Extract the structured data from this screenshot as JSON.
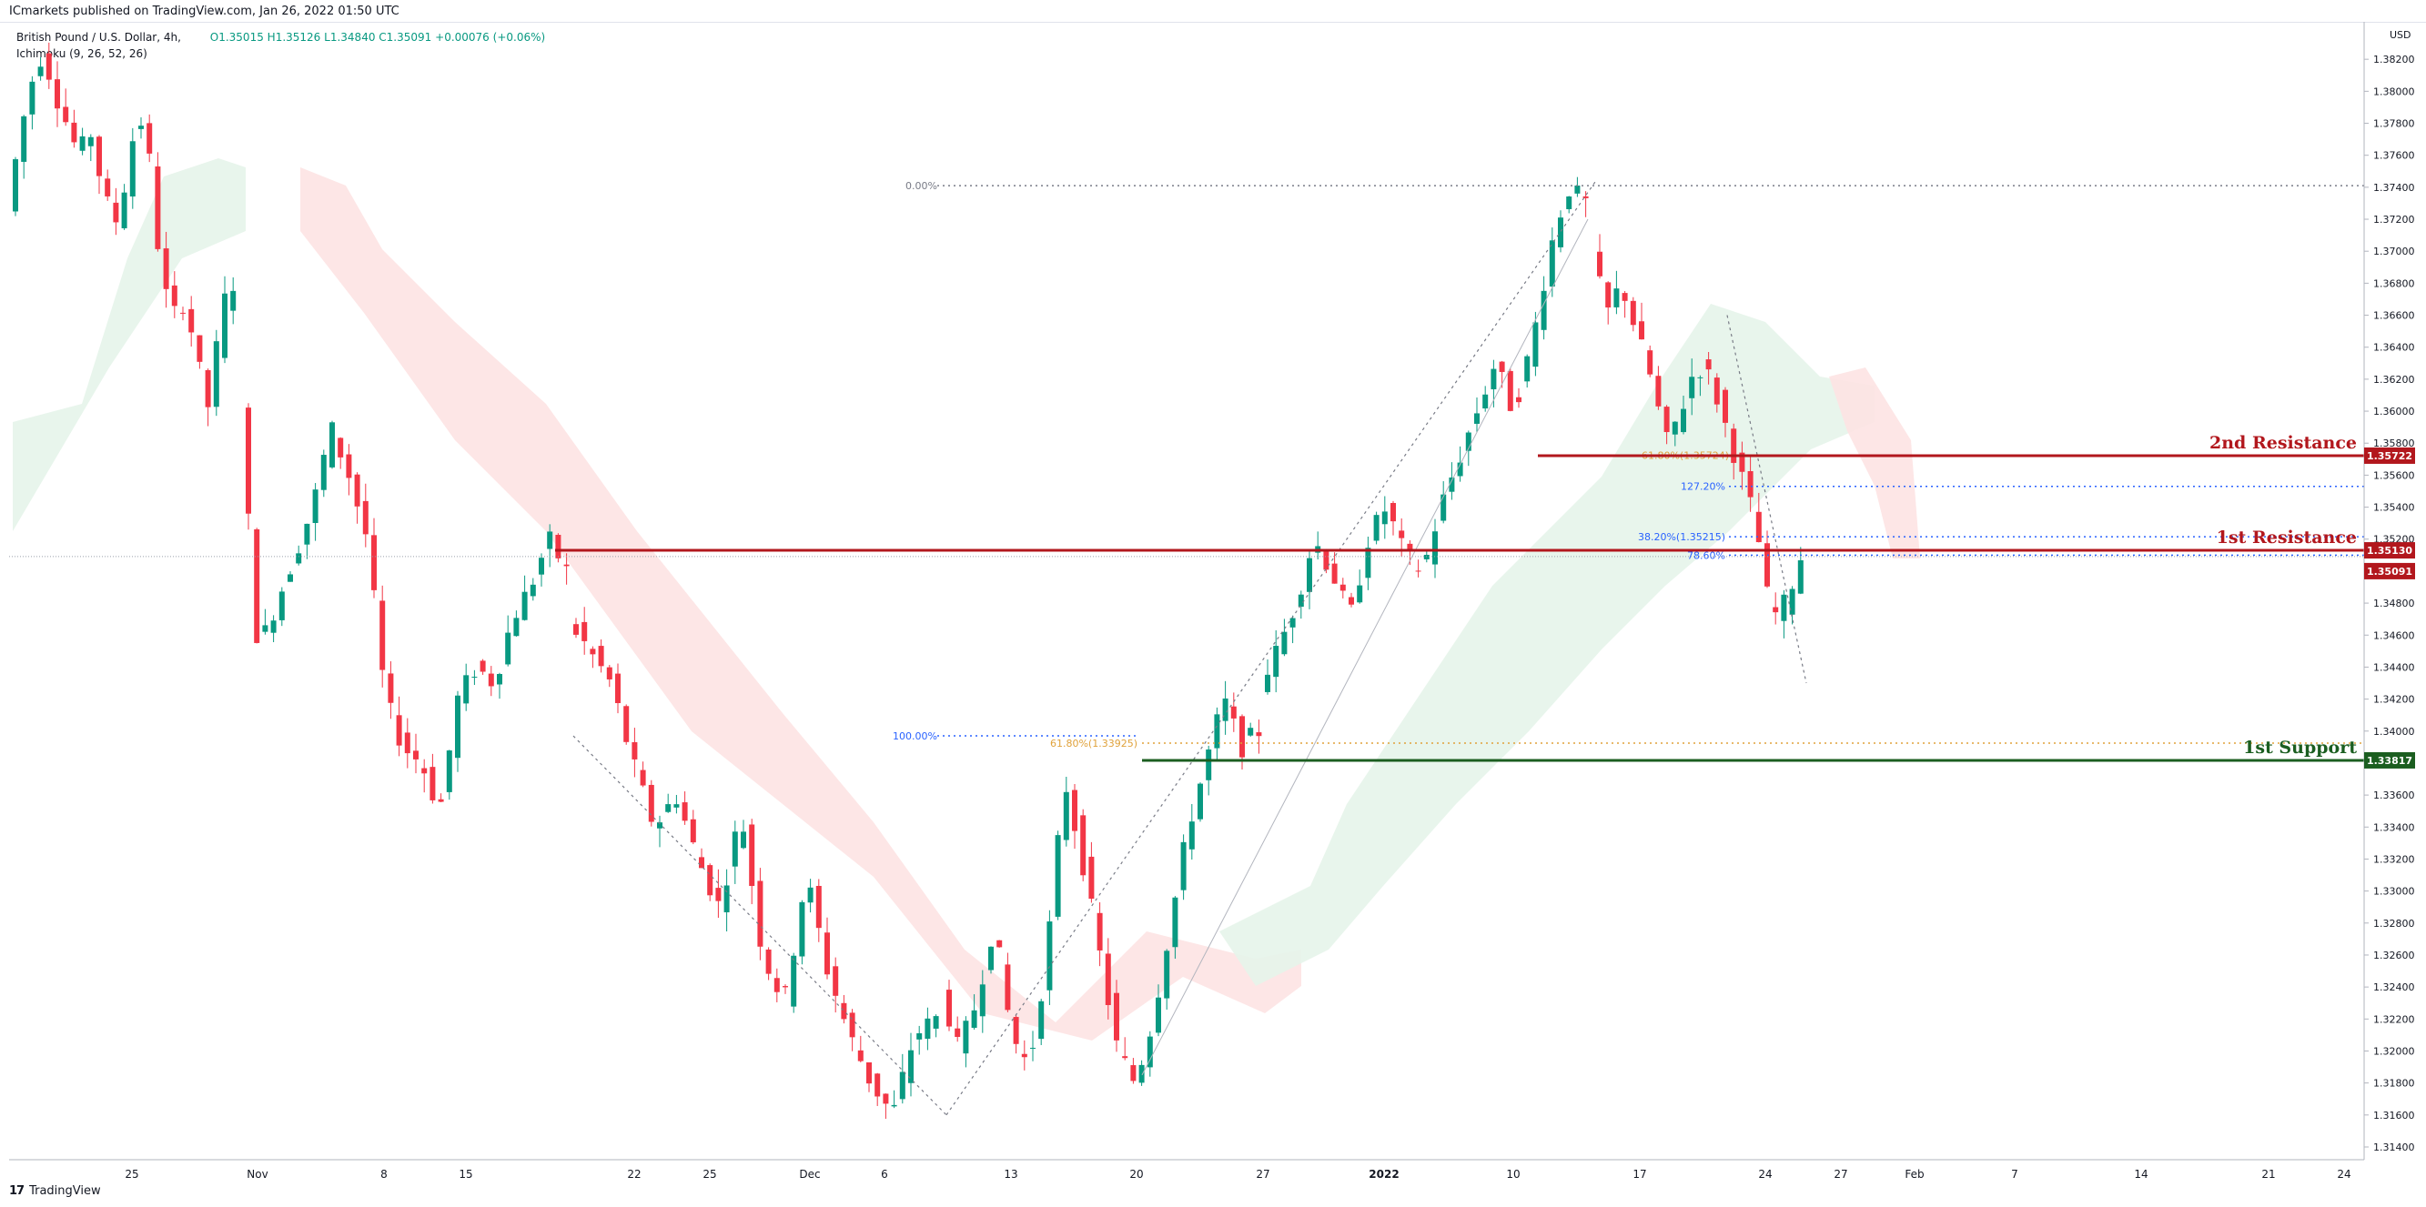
{
  "header": {
    "published": "ICmarkets published on TradingView.com, Jan 26, 2022 01:50 UTC"
  },
  "legend": {
    "symbol": "British Pound / U.S. Dollar, 4h,",
    "open": "O1.35015",
    "high": "H1.35126",
    "low": "L1.34840",
    "close": "C1.35091",
    "change": "+0.00076 (+0.06%)",
    "indicator": "Ichimoku (9, 26, 52, 26)"
  },
  "footer": {
    "brand_mark": "17",
    "brand": "TradingView"
  },
  "colors": {
    "up": "#089981",
    "down": "#f23645",
    "resistance": "#b2171d",
    "support": "#1b5e20",
    "cloud_bull": "#e6f4ea",
    "cloud_bear": "#fde3e3",
    "fib_blue": "#2962ff",
    "fib_orange": "#e0a23b"
  },
  "chart_data": {
    "type": "candlestick",
    "currency": "USD",
    "ylim": [
      1.314,
      1.384
    ],
    "y_ticks": [
      "1.38200",
      "1.38000",
      "1.37800",
      "1.37600",
      "1.37400",
      "1.37200",
      "1.37000",
      "1.36800",
      "1.36600",
      "1.36400",
      "1.36200",
      "1.36000",
      "1.35800",
      "1.35600",
      "1.35400",
      "1.35200",
      "1.35000",
      "1.34800",
      "1.34600",
      "1.34400",
      "1.34200",
      "1.34000",
      "1.33800",
      "1.33600",
      "1.33400",
      "1.33200",
      "1.33000",
      "1.32800",
      "1.32600",
      "1.32400",
      "1.32200",
      "1.32000",
      "1.31800",
      "1.31600",
      "1.31400"
    ],
    "x_ticks": [
      "25",
      "Nov",
      "8",
      "15",
      "22",
      "25",
      "Dec",
      "6",
      "13",
      "20",
      "27",
      "2022",
      "10",
      "17",
      "24",
      "27",
      "Feb",
      "7",
      "14",
      "21",
      "24"
    ],
    "x_tick_bold": "2022",
    "price_path": [
      [
        1.3725,
        1.377,
        1.3805,
        1.3825,
        1.38,
        1.378,
        1.376,
        1.3775,
        1.374,
        1.3715,
        1.3745,
        1.379,
        1.3755,
        1.368,
        1.366,
        1.367,
        1.363,
        1.36,
        1.3665,
        1.368
      ],
      [
        1.36,
        1.345,
        1.348,
        1.351,
        1.354,
        1.359,
        1.356,
        1.352,
        1.342,
        1.339,
        1.338,
        1.335,
        1.342,
        1.344,
        1.343,
        1.347,
        1.349,
        1.352,
        1.35
      ],
      [
        1.347,
        1.345,
        1.343,
        1.338,
        1.334,
        1.336,
        1.332,
        1.329,
        1.335,
        1.326,
        1.323,
        1.331,
        1.325,
        1.321,
        1.318,
        1.316,
        1.321,
        1.322
      ],
      [
        1.324,
        1.32,
        1.323,
        1.328,
        1.321,
        1.319,
        1.326,
        1.337,
        1.332,
        1.326,
        1.32,
        1.318,
        1.322,
        1.328,
        1.334,
        1.338,
        1.342,
        1.339,
        1.34
      ],
      [
        1.343,
        1.345,
        1.348,
        1.352,
        1.35,
        1.347,
        1.352,
        1.354,
        1.351,
        1.35,
        1.354,
        1.357,
        1.36,
        1.363,
        1.36,
        1.364,
        1.37,
        1.374,
        1.373
      ],
      [
        1.37,
        1.366,
        1.368,
        1.365,
        1.362,
        1.358,
        1.36,
        1.363,
        1.362,
        1.359,
        1.356,
        1.353,
        1.347,
        1.348,
        1.3509
      ]
    ],
    "fib_levels": [
      {
        "label": "0.00%",
        "value": 1.3741
      },
      {
        "label": "100.00%",
        "value": 1.3397
      },
      {
        "label": "61.80%(1.33925)",
        "value": 1.33925
      },
      {
        "label": "61.80%(1.35724)",
        "value": 1.35724
      },
      {
        "label": "127.20%",
        "value": 1.3553
      },
      {
        "label": "38.20%(1.35215)",
        "value": 1.35215
      },
      {
        "label": "78.60%",
        "value": 1.351
      }
    ],
    "levels": [
      {
        "label": "2nd Resistance",
        "value": 1.35722,
        "badge": "1.35722",
        "kind": "resistance"
      },
      {
        "label": "1st Resistance",
        "value": 1.3513,
        "badge": "1.35130",
        "kind": "resistance"
      },
      {
        "label": "1st Support",
        "value": 1.33817,
        "badge": "1.33817",
        "kind": "support"
      }
    ],
    "last_price": {
      "value": 1.35091,
      "badge": "1.35091"
    }
  }
}
